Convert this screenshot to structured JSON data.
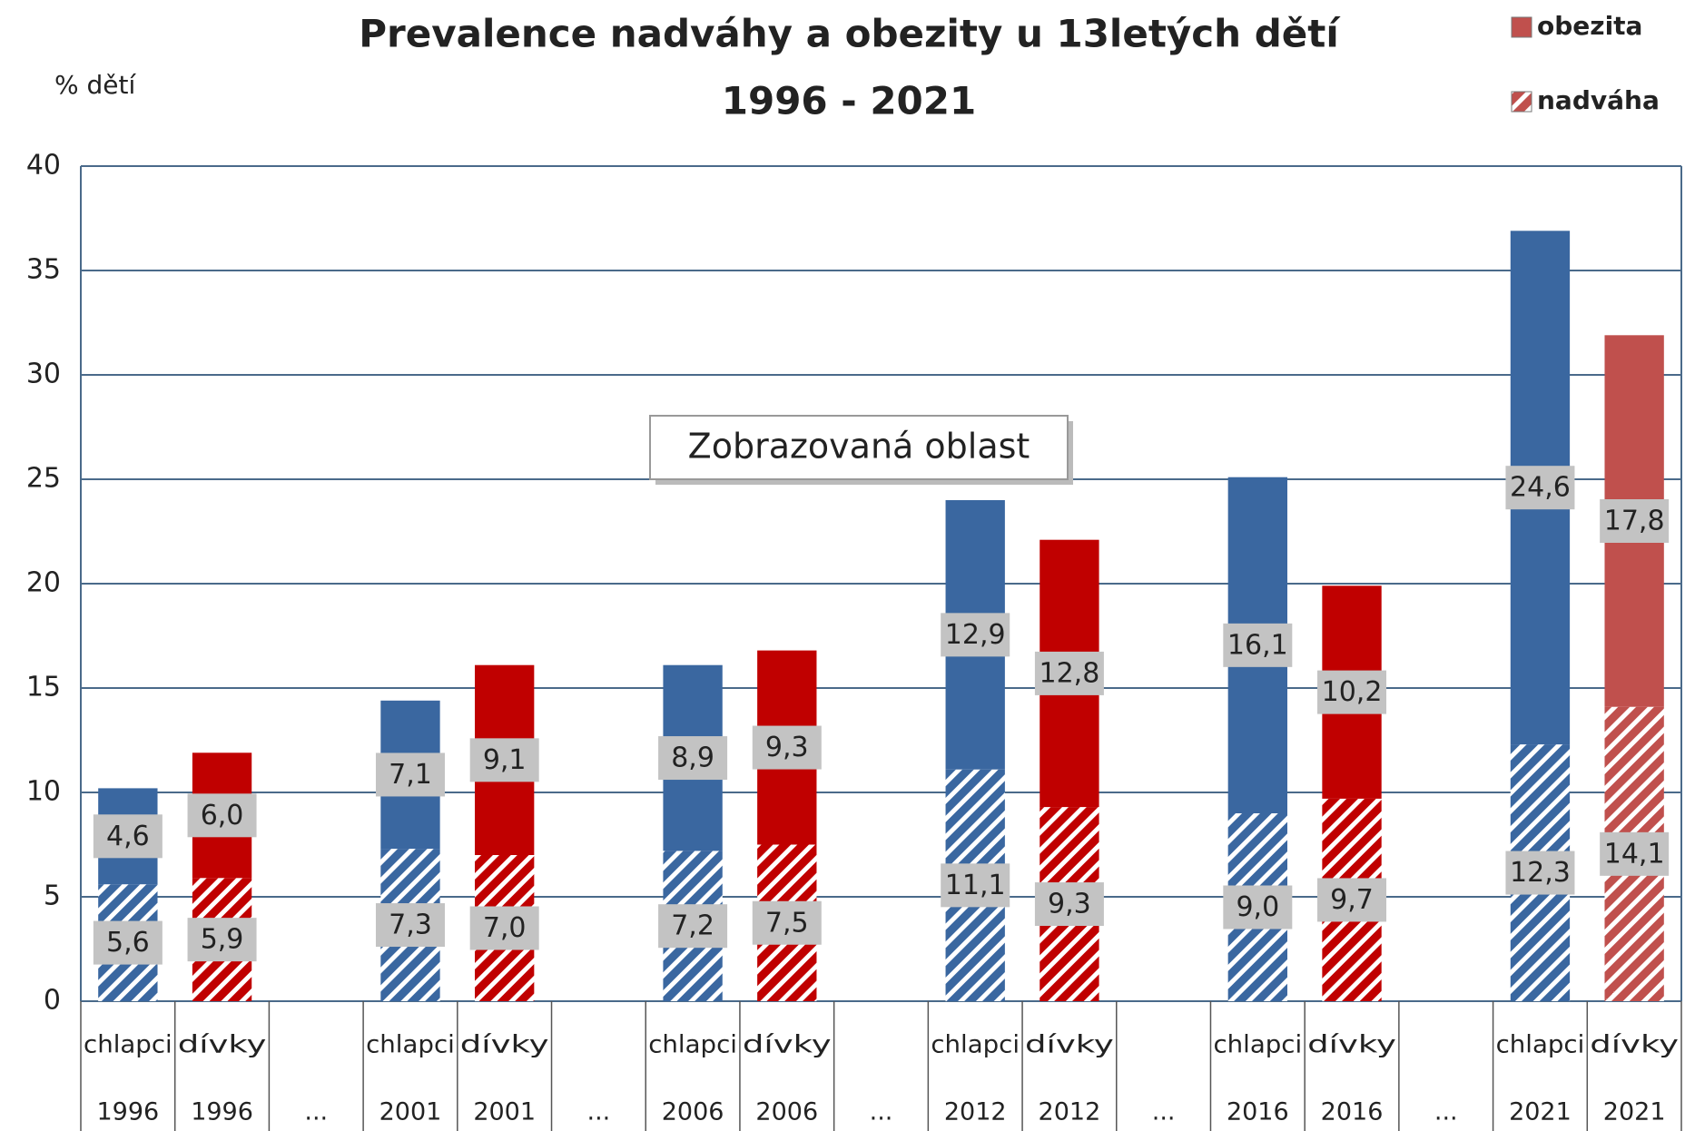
{
  "chart_data": {
    "type": "stacked_bar",
    "title": "Prevalence nadváhy a obezity u 13letých dětí",
    "subtitle": "1996 - 2021",
    "y_label": "% dětí",
    "annotation": "Zobrazovaná oblast",
    "categories": [
      "chlapci",
      "dívky",
      null,
      "chlapci",
      "dívky",
      null,
      "chlapci",
      "dívky",
      null,
      "chlapci",
      "dívky",
      null,
      "chlapci",
      "dívky",
      null,
      "chlapci",
      "dívky"
    ],
    "years": [
      "1996",
      "1996",
      "...",
      "2001",
      "2001",
      "...",
      "2006",
      "2006",
      "...",
      "2012",
      "2012",
      "...",
      "2016",
      "2016",
      "...",
      "2021",
      "2021"
    ],
    "bar_colors": [
      "#3a67a0",
      "#c00000",
      null,
      "#3a67a0",
      "#c00000",
      null,
      "#3a67a0",
      "#c00000",
      null,
      "#3a67a0",
      "#c00000",
      null,
      "#3a67a0",
      "#c00000",
      null,
      "#3a67a0",
      "#c0504d"
    ],
    "series": [
      {
        "name": "nadváha",
        "color": "#c0504d",
        "hatched": true,
        "values": [
          5.6,
          5.9,
          null,
          7.3,
          7.0,
          null,
          7.2,
          7.5,
          null,
          11.1,
          9.3,
          null,
          9.0,
          9.7,
          null,
          12.3,
          14.1
        ],
        "value_labels": [
          "5,6",
          "5,9",
          null,
          "7,3",
          "7,0",
          null,
          "7,2",
          "7,5",
          null,
          "11,1",
          "9,3",
          null,
          "9,0",
          "9,7",
          null,
          "12,3",
          "14,1"
        ]
      },
      {
        "name": "obezita",
        "color": "#c0504d",
        "hatched": false,
        "values": [
          4.6,
          6.0,
          null,
          7.1,
          9.1,
          null,
          8.9,
          9.3,
          null,
          12.9,
          12.8,
          null,
          16.1,
          10.2,
          null,
          24.6,
          17.8
        ],
        "value_labels": [
          "4,6",
          "6,0",
          null,
          "7,1",
          "9,1",
          null,
          "8,9",
          "9,3",
          null,
          "12,9",
          "12,8",
          null,
          "16,1",
          "10,2",
          null,
          "24,6",
          "17,8"
        ]
      }
    ],
    "ylim": [
      0,
      40
    ],
    "yticks": [
      0,
      5,
      10,
      15,
      20,
      25,
      30,
      35,
      40
    ],
    "grid": true,
    "legend": "top-right"
  }
}
